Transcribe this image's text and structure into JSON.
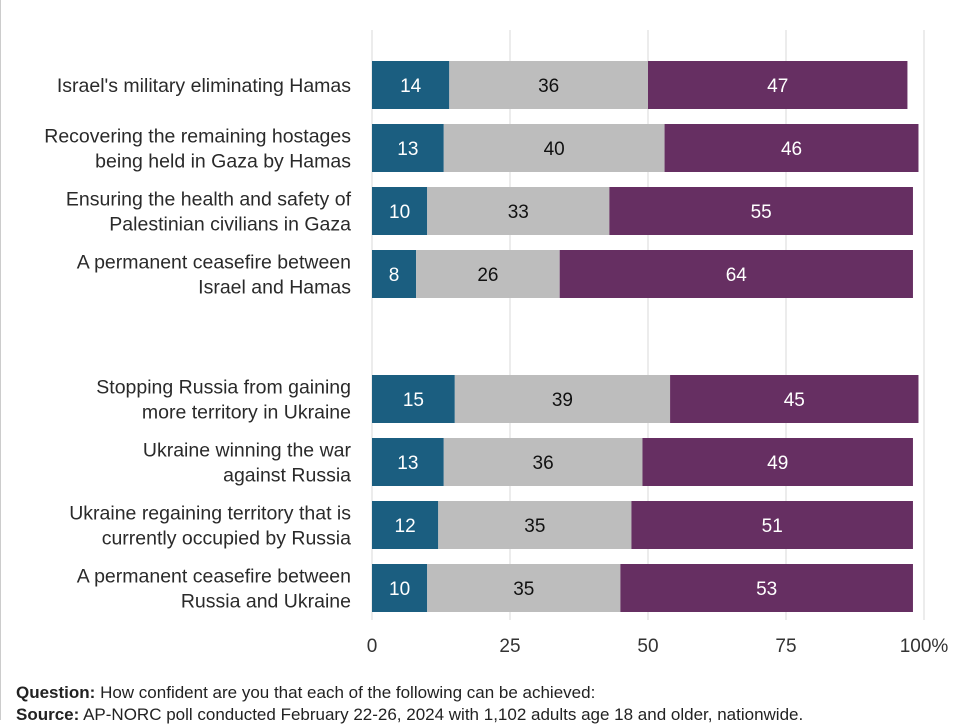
{
  "chart_data": {
    "type": "bar",
    "orientation": "horizontal",
    "stacked": true,
    "xlim": [
      0,
      100
    ],
    "x_ticks": [
      "0",
      "25",
      "50",
      "75",
      "100%"
    ],
    "grid": true,
    "categories": [
      [
        "Israel's military eliminating Hamas"
      ],
      [
        "Recovering the remaining hostages",
        "being held in Gaza by Hamas"
      ],
      [
        "Ensuring the health and safety of",
        "Palestinian civilians in Gaza"
      ],
      [
        "A permanent ceasefire between",
        "Israel and Hamas"
      ],
      [
        "Stopping Russia from gaining",
        "more territory in Ukraine"
      ],
      [
        "Ukraine winning the war",
        "against Russia"
      ],
      [
        "Ukraine regaining territory that is",
        "currently occupied by Russia"
      ],
      [
        "A permanent ceasefire between",
        "Russia and Ukraine"
      ]
    ],
    "series": [
      {
        "color": "#1b5e80",
        "label_color": "#ffffff",
        "values": [
          14,
          13,
          10,
          8,
          15,
          13,
          12,
          10
        ]
      },
      {
        "color": "#bdbdbd",
        "label_color": "#111111",
        "values": [
          36,
          40,
          33,
          26,
          39,
          36,
          35,
          35
        ]
      },
      {
        "color": "#662f62",
        "label_color": "#ffffff",
        "values": [
          47,
          46,
          55,
          64,
          45,
          49,
          51,
          53
        ]
      }
    ]
  },
  "notes": {
    "question_label": "Question:",
    "question_text": "How confident are you that each of the following can be achieved:",
    "source_label": "Source:",
    "source_text": "AP-NORC poll conducted February 22-26, 2024 with 1,102 adults age 18 and older, nationwide."
  }
}
